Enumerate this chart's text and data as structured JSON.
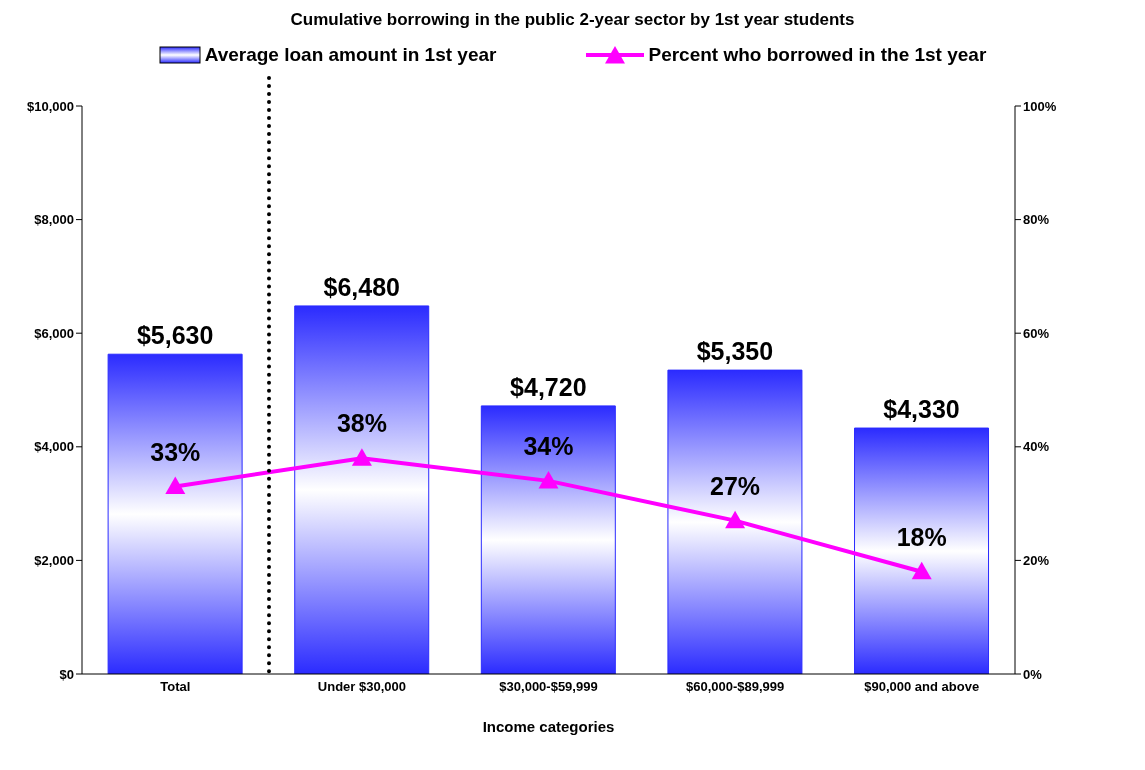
{
  "chart_data": {
    "type": "bar",
    "title": "Cumulative borrowing in the public 2-year sector by 1st year students",
    "xlabel": "Income categories",
    "categories": [
      "Total",
      "Under $30,000",
      "$30,000-$59,999",
      "$60,000-$89,999",
      "$90,000 and above"
    ],
    "series": [
      {
        "name": "Average loan amount in 1st year",
        "color": "#2b2bff",
        "values": [
          5630,
          6480,
          4720,
          5350,
          4330
        ],
        "value_labels": [
          "$5,630",
          "$6,480",
          "$4,720",
          "$5,350",
          "$4,330"
        ]
      },
      {
        "name": "Percent who borrowed in the 1st year",
        "type": "line",
        "axis": "y2",
        "color": "#ff00ff",
        "values": [
          33,
          38,
          34,
          27,
          18
        ],
        "value_labels": [
          "33%",
          "38%",
          "34%",
          "27%",
          "18%"
        ]
      }
    ],
    "ylim": [
      0,
      10000
    ],
    "yticks": [
      {
        "value": 0,
        "label": "$0"
      },
      {
        "value": 2000,
        "label": "$2,000"
      },
      {
        "value": 4000,
        "label": "$4,000"
      },
      {
        "value": 6000,
        "label": "$6,000"
      },
      {
        "value": 8000,
        "label": "$8,000"
      },
      {
        "value": 10000,
        "label": "$10,000"
      }
    ],
    "y2lim": [
      0,
      100
    ],
    "y2ticks": [
      {
        "value": 0,
        "label": "0%"
      },
      {
        "value": 20,
        "label": "20%"
      },
      {
        "value": 40,
        "label": "40%"
      },
      {
        "value": 60,
        "label": "60%"
      },
      {
        "value": 80,
        "label": "80%"
      },
      {
        "value": 100,
        "label": "100%"
      }
    ],
    "grid": false,
    "legend": "top",
    "marker": "triangle",
    "line_style": "solid"
  }
}
